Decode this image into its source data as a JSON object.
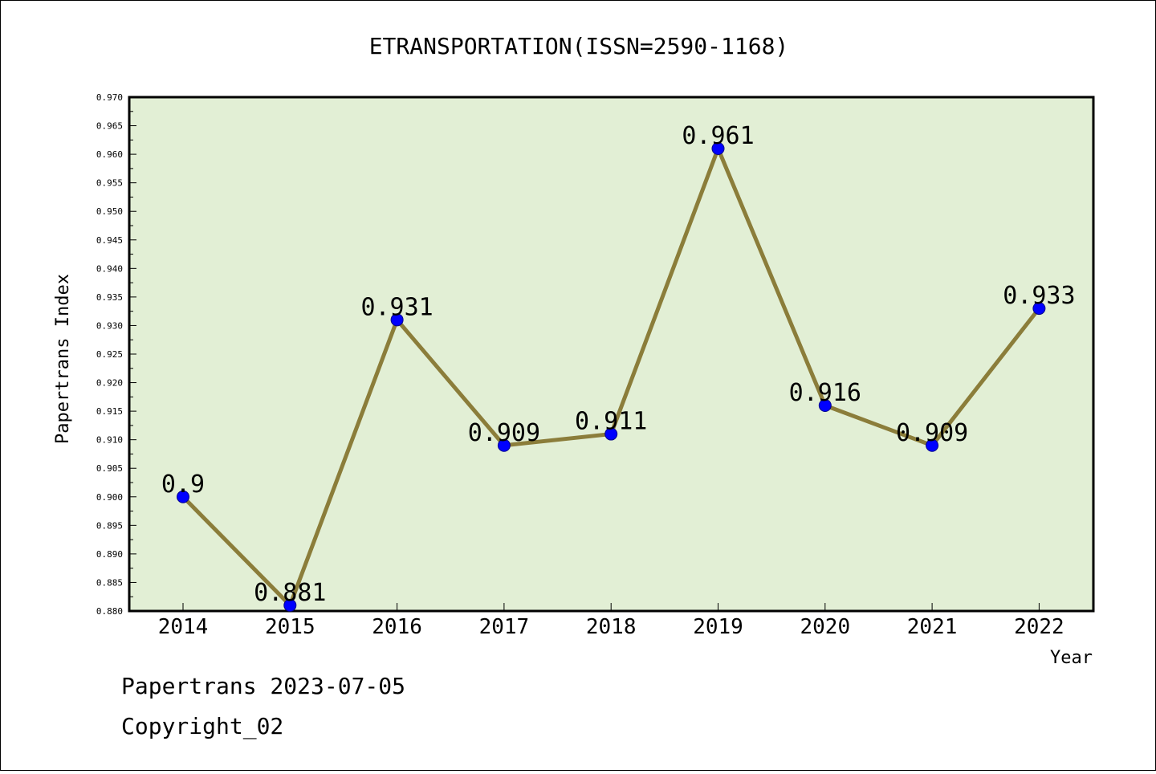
{
  "chart_data": {
    "type": "line",
    "title": "ETRANSPORTATION(ISSN=2590-1168)",
    "xlabel": "Year",
    "ylabel": "Papertrans Index",
    "categories": [
      "2014",
      "2015",
      "2016",
      "2017",
      "2018",
      "2019",
      "2020",
      "2021",
      "2022"
    ],
    "series": [
      {
        "values": [
          0.9,
          0.881,
          0.931,
          0.909,
          0.911,
          0.961,
          0.916,
          0.909,
          0.933
        ],
        "labels": [
          "0.9",
          "0.881",
          "0.931",
          "0.909",
          "0.911",
          "0.961",
          "0.916",
          "0.909",
          "0.933"
        ],
        "line_color": "#8B7D3A",
        "marker_color": "#0000FF"
      }
    ],
    "ylim": [
      0.88,
      0.97
    ],
    "yticks": [
      "0.880",
      "0.885",
      "0.890",
      "0.895",
      "0.900",
      "0.905",
      "0.910",
      "0.915",
      "0.920",
      "0.925",
      "0.930",
      "0.935",
      "0.940",
      "0.945",
      "0.950",
      "0.955",
      "0.960",
      "0.965",
      "0.970"
    ],
    "plot_background": "#E2EFD5",
    "grid": false,
    "legend": "none"
  },
  "footer": {
    "line1": "Papertrans 2023-07-05",
    "line2": "Copyright_02"
  }
}
